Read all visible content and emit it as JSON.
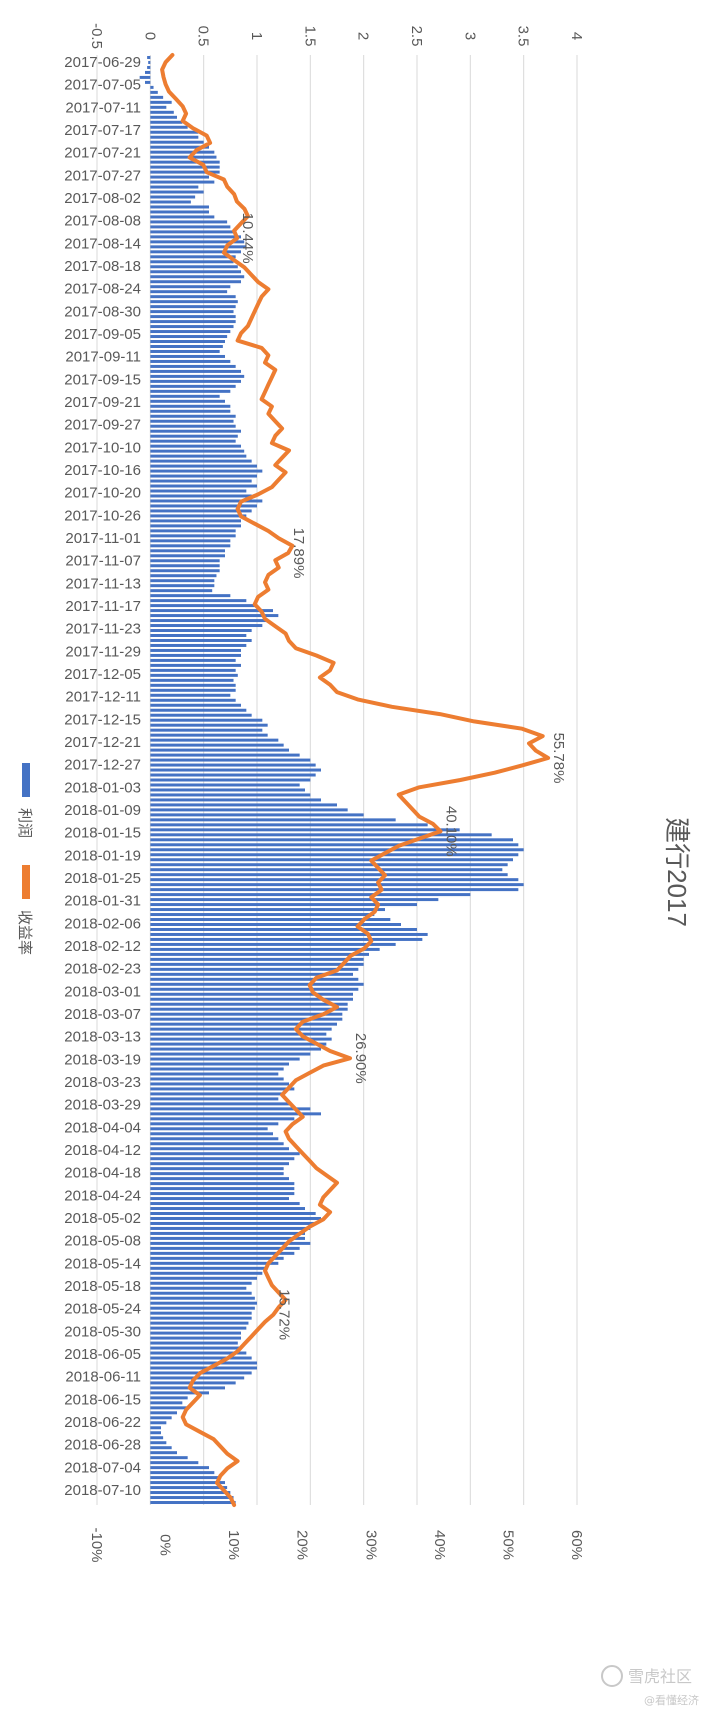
{
  "chart_data": {
    "type": "bar+line",
    "title": "建行2017",
    "top_axis": {
      "ticks": [
        "-0.5",
        "0",
        "0.5",
        "1",
        "1.5",
        "2",
        "2.5",
        "3",
        "3.5",
        "4"
      ],
      "range": [
        -0.5,
        4
      ]
    },
    "bottom_axis": {
      "ticks": [
        "-10%",
        "0%",
        "10%",
        "20%",
        "30%",
        "40%",
        "50%",
        "60%"
      ],
      "range": [
        -10,
        60
      ]
    },
    "grid": true,
    "legend": {
      "placement": "left",
      "items": [
        {
          "label": "利润",
          "color": "#4472c4",
          "kind": "bar"
        },
        {
          "label": "收益率",
          "color": "#ed7d31",
          "kind": "line"
        }
      ]
    },
    "category_labels": [
      "2017-06-29",
      "2017-07-05",
      "2017-07-11",
      "2017-07-17",
      "2017-07-21",
      "2017-07-27",
      "2017-08-02",
      "2017-08-08",
      "2017-08-14",
      "2017-08-18",
      "2017-08-24",
      "2017-08-30",
      "2017-09-05",
      "2017-09-11",
      "2017-09-15",
      "2017-09-21",
      "2017-09-27",
      "2017-10-10",
      "2017-10-16",
      "2017-10-20",
      "2017-10-26",
      "2017-11-01",
      "2017-11-07",
      "2017-11-13",
      "2017-11-17",
      "2017-11-23",
      "2017-11-29",
      "2017-12-05",
      "2017-12-11",
      "2017-12-15",
      "2017-12-21",
      "2017-12-27",
      "2018-01-03",
      "2018-01-09",
      "2018-01-15",
      "2018-01-19",
      "2018-01-25",
      "2018-01-31",
      "2018-02-06",
      "2018-02-12",
      "2018-02-23",
      "2018-03-01",
      "2018-03-07",
      "2018-03-13",
      "2018-03-19",
      "2018-03-23",
      "2018-03-29",
      "2018-04-04",
      "2018-04-12",
      "2018-04-18",
      "2018-04-24",
      "2018-05-02",
      "2018-05-08",
      "2018-05-14",
      "2018-05-18",
      "2018-05-24",
      "2018-05-30",
      "2018-06-05",
      "2018-06-11",
      "2018-06-15",
      "2018-06-22",
      "2018-06-28",
      "2018-07-04",
      "2018-07-10"
    ],
    "series": [
      {
        "name": "利润",
        "axis": "top",
        "type": "bar",
        "color": "#4472c4",
        "values": [
          -0.03,
          -0.02,
          -0.03,
          -0.05,
          -0.1,
          -0.05,
          0.03,
          0.07,
          0.12,
          0.2,
          0.15,
          0.22,
          0.25,
          0.3,
          0.35,
          0.45,
          0.45,
          0.5,
          0.55,
          0.6,
          0.62,
          0.65,
          0.65,
          0.65,
          0.55,
          0.6,
          0.45,
          0.5,
          0.42,
          0.38,
          0.55,
          0.55,
          0.6,
          0.72,
          0.75,
          0.8,
          0.85,
          0.88,
          0.9,
          0.85,
          0.8,
          0.78,
          0.82,
          0.85,
          0.88,
          0.85,
          0.75,
          0.72,
          0.8,
          0.82,
          0.8,
          0.78,
          0.8,
          0.8,
          0.78,
          0.75,
          0.72,
          0.7,
          0.68,
          0.65,
          0.7,
          0.75,
          0.8,
          0.85,
          0.88,
          0.85,
          0.8,
          0.75,
          0.65,
          0.7,
          0.75,
          0.75,
          0.8,
          0.78,
          0.8,
          0.85,
          0.82,
          0.8,
          0.85,
          0.88,
          0.9,
          0.95,
          1.0,
          1.05,
          1.0,
          0.95,
          1.0,
          0.9,
          0.95,
          1.05,
          1.0,
          0.95,
          0.9,
          0.85,
          0.85,
          0.8,
          0.8,
          0.75,
          0.75,
          0.7,
          0.7,
          0.65,
          0.65,
          0.65,
          0.62,
          0.6,
          0.6,
          0.58,
          0.75,
          0.9,
          1.0,
          1.15,
          1.2,
          1.1,
          1.05,
          0.95,
          0.9,
          0.95,
          0.9,
          0.85,
          0.85,
          0.8,
          0.85,
          0.8,
          0.82,
          0.78,
          0.8,
          0.8,
          0.75,
          0.8,
          0.85,
          0.9,
          0.95,
          1.05,
          1.1,
          1.05,
          1.1,
          1.2,
          1.25,
          1.3,
          1.4,
          1.5,
          1.55,
          1.6,
          1.55,
          1.5,
          1.4,
          1.45,
          1.5,
          1.6,
          1.75,
          1.85,
          2.0,
          2.3,
          2.6,
          2.9,
          3.2,
          3.4,
          3.45,
          3.5,
          3.45,
          3.4,
          3.35,
          3.3,
          3.35,
          3.45,
          3.5,
          3.45,
          3.0,
          2.7,
          2.5,
          2.2,
          2.1,
          2.25,
          2.35,
          2.5,
          2.6,
          2.55,
          2.3,
          2.15,
          2.05,
          2.0,
          2.0,
          1.95,
          1.9,
          1.95,
          2.0,
          1.95,
          1.9,
          1.9,
          1.85,
          1.85,
          1.8,
          1.8,
          1.75,
          1.7,
          1.65,
          1.7,
          1.65,
          1.6,
          1.5,
          1.4,
          1.3,
          1.25,
          1.2,
          1.25,
          1.3,
          1.35,
          1.25,
          1.2,
          1.3,
          1.5,
          1.6,
          1.35,
          1.2,
          1.1,
          1.15,
          1.2,
          1.25,
          1.3,
          1.4,
          1.35,
          1.3,
          1.25,
          1.25,
          1.3,
          1.35,
          1.35,
          1.35,
          1.3,
          1.4,
          1.45,
          1.55,
          1.6,
          1.55,
          1.5,
          1.45,
          1.45,
          1.5,
          1.4,
          1.35,
          1.25,
          1.2,
          1.1,
          1.05,
          1.0,
          0.95,
          0.9,
          0.95,
          0.98,
          1.0,
          0.98,
          0.95,
          0.95,
          0.92,
          0.9,
          0.85,
          0.85,
          0.82,
          0.85,
          0.9,
          0.95,
          1.0,
          1.0,
          0.95,
          0.88,
          0.8,
          0.7,
          0.55,
          0.35,
          0.3,
          0.35,
          0.25,
          0.2,
          0.15,
          0.1,
          0.1,
          0.12,
          0.15,
          0.2,
          0.25,
          0.35,
          0.45,
          0.55,
          0.6,
          0.65,
          0.7,
          0.72,
          0.75,
          0.78,
          0.8
        ]
      },
      {
        "name": "收益率",
        "axis": "bottom",
        "type": "line",
        "color": "#ed7d31",
        "values": [
          1.0,
          0.0,
          -0.5,
          -0.3,
          0.0,
          0.5,
          1.5,
          2.5,
          3.0,
          2.5,
          4.0,
          6.0,
          6.5,
          4.5,
          3.5,
          5.5,
          6.0,
          8.5,
          9.0,
          10.0,
          10.4,
          11.5,
          12.0,
          11.0,
          10.0,
          10.44,
          9.0,
          8.5,
          10.0,
          11.5,
          12.5,
          13.5,
          15.0,
          14.0,
          13.5,
          13.0,
          12.5,
          12.0,
          11.0,
          10.5,
          14.0,
          15.0,
          14.5,
          16.0,
          15.5,
          15.0,
          14.5,
          14.0,
          15.5,
          15.0,
          16.0,
          17.0,
          16.0,
          15.5,
          18.0,
          17.0,
          16.0,
          17.5,
          16.5,
          15.5,
          13.5,
          11.0,
          10.5,
          11.0,
          13.0,
          15.0,
          16.5,
          18.5,
          17.89,
          16.0,
          16.5,
          15.0,
          14.5,
          15.0,
          13.5,
          13.0,
          14.0,
          14.5,
          16.0,
          17.5,
          18.0,
          19.0,
          22.0,
          24.5,
          24.0,
          22.5,
          24.0,
          25.0,
          28.0,
          33.0,
          40.0,
          45.0,
          52.0,
          55.0,
          53.0,
          54.0,
          55.78,
          52.0,
          48.0,
          43.0,
          37.0,
          34.0,
          35.0,
          36.0,
          37.0,
          39.0,
          40.1,
          37.0,
          34.0,
          32.0,
          30.0,
          31.0,
          32.0,
          31.0,
          31.5,
          30.0,
          31.0,
          30.5,
          29.0,
          28.0,
          29.5,
          30.0,
          29.0,
          27.0,
          26.0,
          25.0,
          22.0,
          21.0,
          21.5,
          23.0,
          25.0,
          23.0,
          20.0,
          19.0,
          20.0,
          22.0,
          24.0,
          26.9,
          23.0,
          21.0,
          19.0,
          18.0,
          17.0,
          18.0,
          19.0,
          20.0,
          18.5,
          17.5,
          18.0,
          19.0,
          20.0,
          21.0,
          22.0,
          23.5,
          25.0,
          24.0,
          23.0,
          22.5,
          24.0,
          23.0,
          21.0,
          19.5,
          18.0,
          17.0,
          16.0,
          15.0,
          14.5,
          15.0,
          15.5,
          16.5,
          17.5,
          16.5,
          15.72,
          14.5,
          13.5,
          12.5,
          11.5,
          10.5,
          9.0,
          7.0,
          5.0,
          4.0,
          3.5,
          5.0,
          4.0,
          3.0,
          2.5,
          3.0,
          5.0,
          7.0,
          8.0,
          9.0,
          10.5,
          9.0,
          8.0,
          7.5,
          8.5,
          9.5,
          10.0
        ]
      }
    ],
    "annotations": [
      "10.44%",
      "17.89%",
      "55.78%",
      "40.10%",
      "26.90%",
      "15.72%"
    ]
  },
  "watermark": {
    "line1": "雪虎社区",
    "line2": "@看懂经济"
  }
}
